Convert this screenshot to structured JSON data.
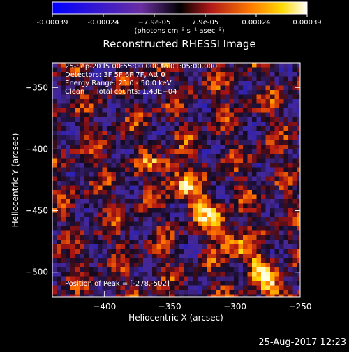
{
  "colorbar": {
    "ticks": [
      "-0.00039",
      "-0.00024",
      "−7.9e-05",
      "7.9e-05",
      "0.00024",
      "0.00039"
    ],
    "units": "(photons cm⁻² s⁻¹ asec⁻²)"
  },
  "chart_data": {
    "type": "heatmap",
    "title": "Reconstructed RHESSI Image",
    "xlabel": "Heliocentric X (arcsec)",
    "ylabel": "Heliocentric Y (arcsec)",
    "xlim": [
      -440,
      -250
    ],
    "ylim": [
      -520,
      -330
    ],
    "x_ticks": [
      -400,
      -350,
      -300,
      -250
    ],
    "y_ticks": [
      -350,
      -400,
      -450,
      -500
    ],
    "colorbar_range": [
      -0.00039,
      0.00039
    ],
    "peak_position": [
      -278,
      -502
    ],
    "annotations": [
      "25-Sep-2015 00:55:00.000 to 01:05:00.000",
      "Detectors: 3F 5F 6F 7F, Att 0",
      "Energy Range: 25.0 - 50.0 keV",
      "Clean     Total counts: 1.43E+04"
    ],
    "peak_label": "Position of Peak = [-278,-502]"
  },
  "timestamp": "25-Aug-2017 12:23"
}
